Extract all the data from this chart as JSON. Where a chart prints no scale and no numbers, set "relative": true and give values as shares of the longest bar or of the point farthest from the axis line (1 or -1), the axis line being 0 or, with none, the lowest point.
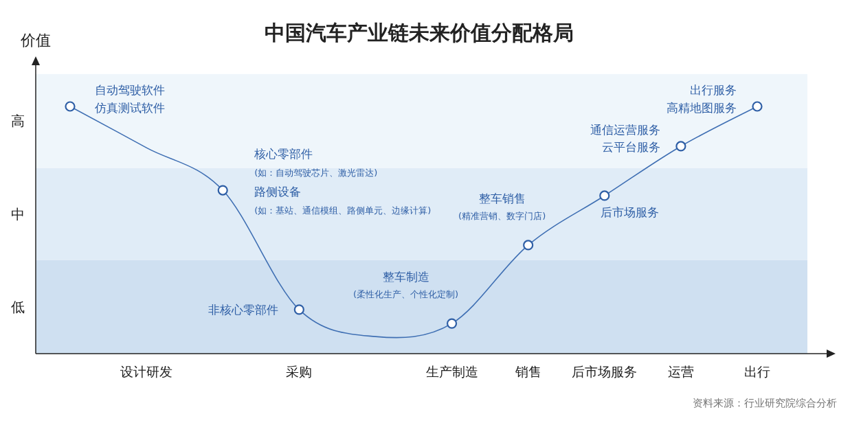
{
  "chart_data": {
    "type": "line",
    "title": "中国汽车产业链未来价值分配格局",
    "ylabel": "价值",
    "relative": true,
    "categories": [
      null,
      "设计研发",
      null,
      "采购",
      null,
      "生产制造",
      "销售",
      "后市场服务",
      "运营",
      "出行"
    ],
    "series": [
      {
        "type": "line",
        "color": "#3f6fb3",
        "values": [
          1,
          0.833,
          0.661,
          0.178,
          0.069,
          0.122,
          0.439,
          0.639,
          0.839,
          1
        ]
      },
      {
        "type": "scatter",
        "marker": "circle",
        "color": "#2f5fa6",
        "values": [
          1,
          null,
          0.661,
          0.178,
          null,
          0.122,
          0.439,
          0.639,
          0.839,
          1
        ]
      }
    ],
    "bands": [
      {
        "axis": "y",
        "from": 0,
        "to": 0.378,
        "label": "低",
        "color": "#cfe0f1"
      },
      {
        "axis": "y",
        "from": 0.378,
        "to": 0.75,
        "label": "中",
        "color": "#e0ecf7"
      },
      {
        "axis": "y",
        "from": 0.75,
        "to": 1.131,
        "label": "高",
        "color": "#eff6fb"
      }
    ],
    "annotations": [
      "自动驾驶软件",
      "仿真测试软件",
      "核心零部件",
      "(如：自动驾驶芯片、激光雷达)",
      "路侧设备",
      "(如：基站、通信模组、路侧单元、边缘计算)",
      {
        "text": "非核心零部件",
        "x": "采购",
        "y": 0.178
      },
      "整车制造",
      "(柔性化生产、个性化定制)",
      "整车销售",
      "(精准营销、数字门店)",
      {
        "text": "后市场服务",
        "x": "后市场服务",
        "y": 0.639
      },
      {
        "text": "通信运营服务",
        "x": "运营",
        "y": 0.839
      },
      {
        "text": "云平台服务",
        "x": "运营",
        "y": 0.839
      },
      {
        "text": "出行服务",
        "x": "出行",
        "y": 1
      },
      {
        "text": "高精地图服务",
        "x": "出行",
        "y": 1
      },
      "资料来源：行业研究院综合分析"
    ]
  }
}
